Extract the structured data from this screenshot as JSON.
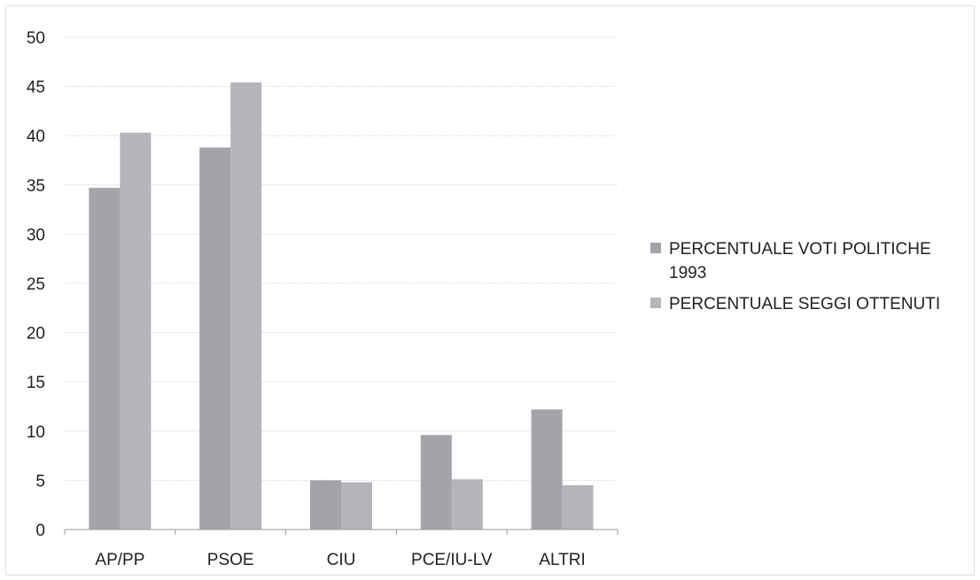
{
  "chart_data": {
    "type": "bar",
    "title": "",
    "xlabel": "",
    "ylabel": "",
    "ylim": [
      0,
      50
    ],
    "yticks": [
      "0",
      "5",
      "10",
      "15",
      "20",
      "25",
      "30",
      "35",
      "40",
      "45",
      "50"
    ],
    "grid": true,
    "legend_position": "right",
    "categories": [
      "AP/PP",
      "PSOE",
      "CIU",
      "PCE/IU-LV",
      "ALTRI"
    ],
    "series": [
      {
        "name": "PERCENTUALE VOTI POLITICHE 1993",
        "values": [
          34.7,
          38.8,
          5.0,
          9.6,
          12.2
        ],
        "color": "#a3a3a9"
      },
      {
        "name": "PERCENTUALE SEGGI OTTENUTI",
        "values": [
          40.3,
          45.4,
          4.8,
          5.1,
          4.5
        ],
        "color": "#b4b4ba"
      }
    ]
  }
}
